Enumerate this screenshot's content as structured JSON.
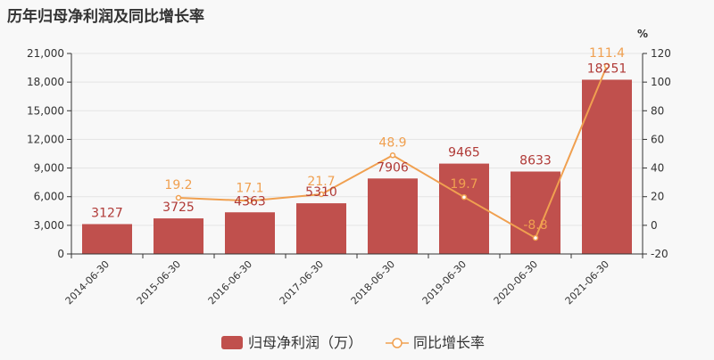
{
  "chart_data": {
    "type": "bar",
    "title": "历年归母净利润及同比增长率",
    "categories": [
      "2014-06-30",
      "2015-06-30",
      "2016-06-30",
      "2017-06-30",
      "2018-06-30",
      "2019-06-30",
      "2020-06-30",
      "2021-06-30"
    ],
    "series": [
      {
        "name": "归母净利润（万）",
        "type": "bar",
        "axis": "left",
        "color": "#c0504d",
        "values": [
          3127,
          3725,
          4363,
          5310,
          7906,
          9465,
          8633,
          18251
        ],
        "labels": [
          "3127",
          "3725",
          "4363",
          "5310",
          "7906",
          "9465",
          "8633",
          "18251"
        ]
      },
      {
        "name": "同比增长率",
        "type": "line",
        "axis": "right",
        "color": "#f0a050",
        "values": [
          null,
          19.2,
          17.1,
          21.7,
          48.9,
          19.7,
          -8.8,
          111.4
        ],
        "labels": [
          "",
          "19.2",
          "17.1",
          "21.7",
          "48.9",
          "19.7",
          "-8.8",
          "111.4"
        ]
      }
    ],
    "y_left": {
      "min": 0,
      "max": 21000,
      "ticks": [
        0,
        3000,
        6000,
        9000,
        12000,
        15000,
        18000,
        21000
      ],
      "tick_labels": [
        "0",
        "3,000",
        "6,000",
        "9,000",
        "12,000",
        "15,000",
        "18,000",
        "21,000"
      ]
    },
    "y_right": {
      "min": -20,
      "max": 120,
      "ticks": [
        -20,
        0,
        20,
        40,
        60,
        80,
        100,
        120
      ],
      "tick_labels": [
        "-20",
        "0",
        "20",
        "40",
        "60",
        "80",
        "100",
        "120"
      ],
      "unit": "%"
    },
    "grid": true,
    "legend_position": "bottom-center"
  }
}
